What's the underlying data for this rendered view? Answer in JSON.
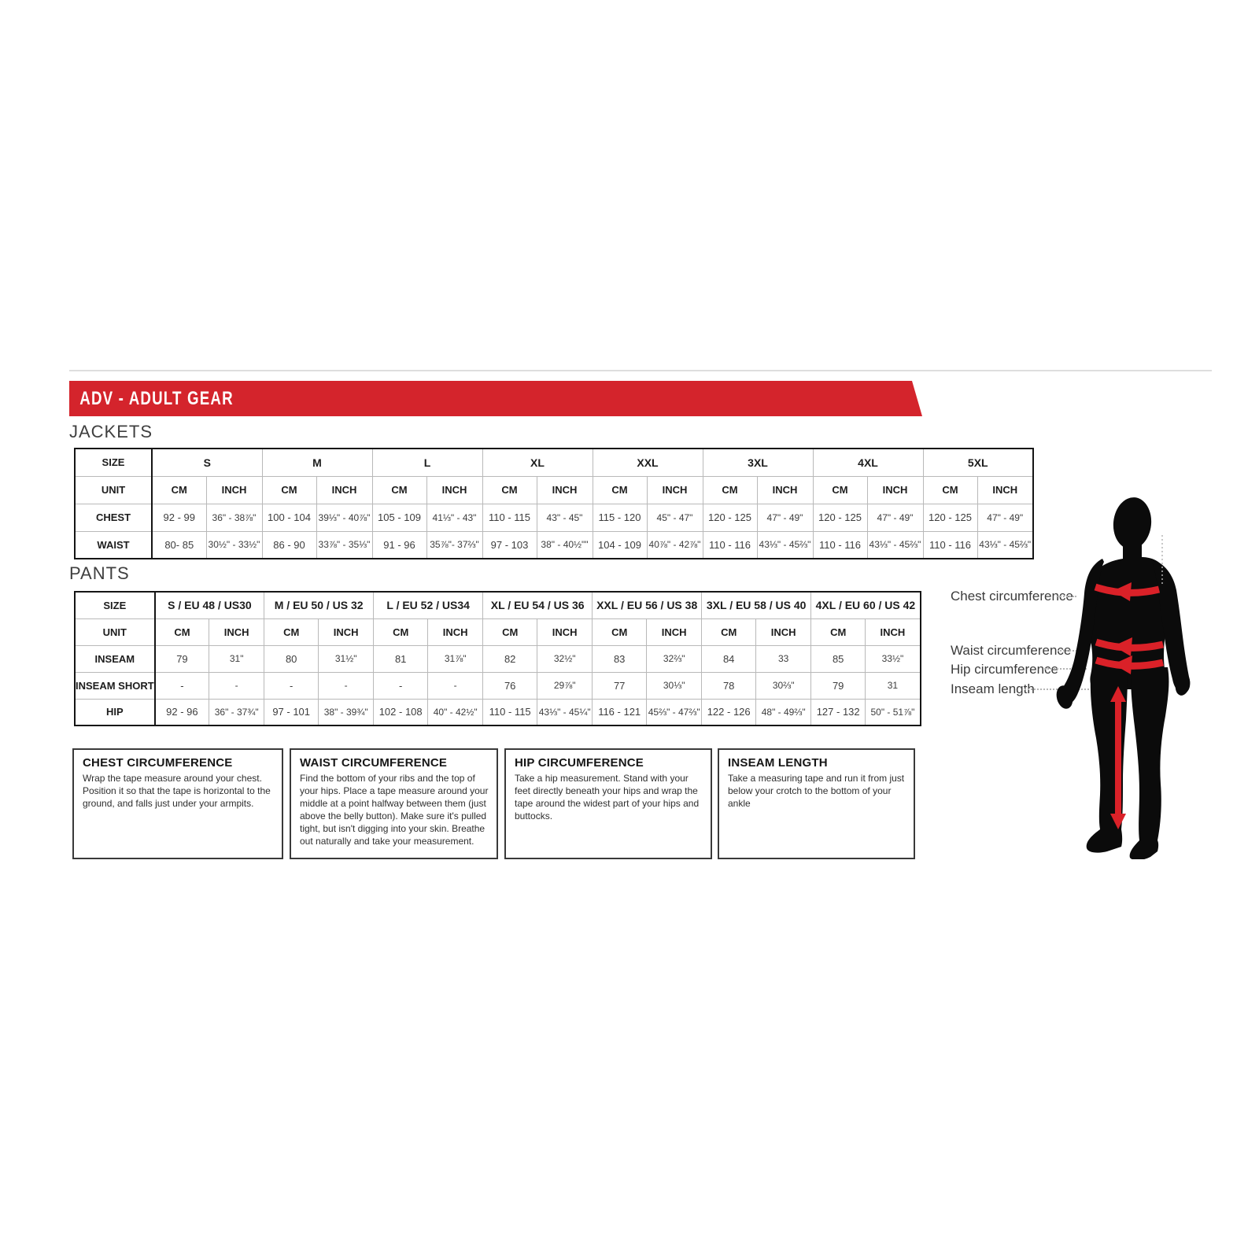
{
  "banner": {
    "title": "ADV - ADULT GEAR"
  },
  "sections": {
    "jackets": "JACKETS",
    "pants": "PANTS"
  },
  "jackets_table": {
    "size_header": "SIZE",
    "unit_header": "UNIT",
    "cm": "CM",
    "inch": "INCH",
    "sizes": [
      "S",
      "M",
      "L",
      "XL",
      "XXL",
      "3XL",
      "4XL",
      "5XL"
    ],
    "rows": [
      {
        "label": "CHEST",
        "cm": [
          "92 - 99",
          "100 - 104",
          "105 - 109",
          "110 - 115",
          "115 - 120",
          "120 - 125",
          "120 - 125",
          "120 - 125"
        ],
        "inch": [
          "36\" - 38⅞\"",
          "39⅓\" - 40⅞\"",
          "41⅓\" - 43\"",
          "43\" - 45\"",
          "45\" - 47\"",
          "47\" - 49\"",
          "47\" - 49\"",
          "47\" - 49\""
        ]
      },
      {
        "label": "WAIST",
        "cm": [
          "80- 85",
          "86 - 90",
          "91 - 96",
          "97 - 103",
          "104 - 109",
          "110 - 116",
          "110 - 116",
          "110 - 116"
        ],
        "inch": [
          "30½\" - 33½\"",
          "33⅞\" - 35⅓\"",
          "35⅞\"- 37⅔\"",
          "38\" - 40½\"\"",
          "40⅞\" - 42⅞\"",
          "43⅓\" - 45⅔\"",
          "43⅓\" - 45⅔\"",
          "43⅓\" - 45⅔\""
        ]
      }
    ]
  },
  "pants_table": {
    "size_header": "SIZE",
    "unit_header": "UNIT",
    "cm": "CM",
    "inch": "INCH",
    "sizes": [
      "S / EU 48 / US30",
      "M / EU 50 / US 32",
      "L / EU 52 / US34",
      "XL / EU 54 / US 36",
      "XXL / EU 56 / US 38",
      "3XL / EU 58 / US 40",
      "4XL / EU 60 / US 42"
    ],
    "rows": [
      {
        "label": "INSEAM",
        "cm": [
          "79",
          "80",
          "81",
          "82",
          "83",
          "84",
          "85"
        ],
        "inch": [
          "31\"",
          "31½\"",
          "31⅞\"",
          "32½\"",
          "32⅔\"",
          "33",
          "33½\""
        ]
      },
      {
        "label": "INSEAM SHORT",
        "cm": [
          "-",
          "-",
          "-",
          "76",
          "77",
          "78",
          "79"
        ],
        "inch": [
          "-",
          "-",
          "-",
          "29⅞\"",
          "30⅓\"",
          "30⅔\"",
          "31"
        ]
      },
      {
        "label": "HIP",
        "cm": [
          "92 - 96",
          "97 - 101",
          "102 - 108",
          "110 - 115",
          "116 - 121",
          "122 - 126",
          "127 - 132"
        ],
        "inch": [
          "36\" - 37¾\"",
          "38\" - 39¾\"",
          "40\" - 42½\"",
          "43⅓\" - 45¼\"",
          "45⅔\" - 47⅔\"",
          "48\" - 49⅔\"",
          "50\" - 51⅞\""
        ]
      }
    ]
  },
  "guides": [
    {
      "title": "CHEST CIRCUMFERENCE",
      "body": "Wrap the tape measure around your chest. Position it so that the tape is horizontal to the ground, and falls just under your armpits."
    },
    {
      "title": "WAIST CIRCUMFERENCE",
      "body": "Find the bottom of your ribs and the top of your hips. Place a tape measure around your middle at a point halfway between them (just above the belly button). Make sure it's pulled tight, but isn't digging into your skin. Breathe out naturally and take your measurement."
    },
    {
      "title": "HIP CIRCUMFERENCE",
      "body": "Take a hip measurement. Stand with your feet directly beneath your hips and wrap the tape around the widest part of your hips and buttocks."
    },
    {
      "title": "INSEAM LENGTH",
      "body": "Take a measuring tape and run it from just below your crotch to the bottom of your ankle"
    }
  ],
  "figure_labels": {
    "chest": "Chest circumference",
    "waist": "Waist circumference",
    "hip": "Hip circumference",
    "inseam": "Inseam length"
  },
  "colors": {
    "accent_red": "#d4242c",
    "arrow_red": "#da2128",
    "silhouette_black": "#0b0b0b",
    "table_border_dark": "#151515",
    "table_border_light": "#b9b9b9",
    "text_dark": "#1d1d1d",
    "text_gray": "#3d3d3d"
  }
}
